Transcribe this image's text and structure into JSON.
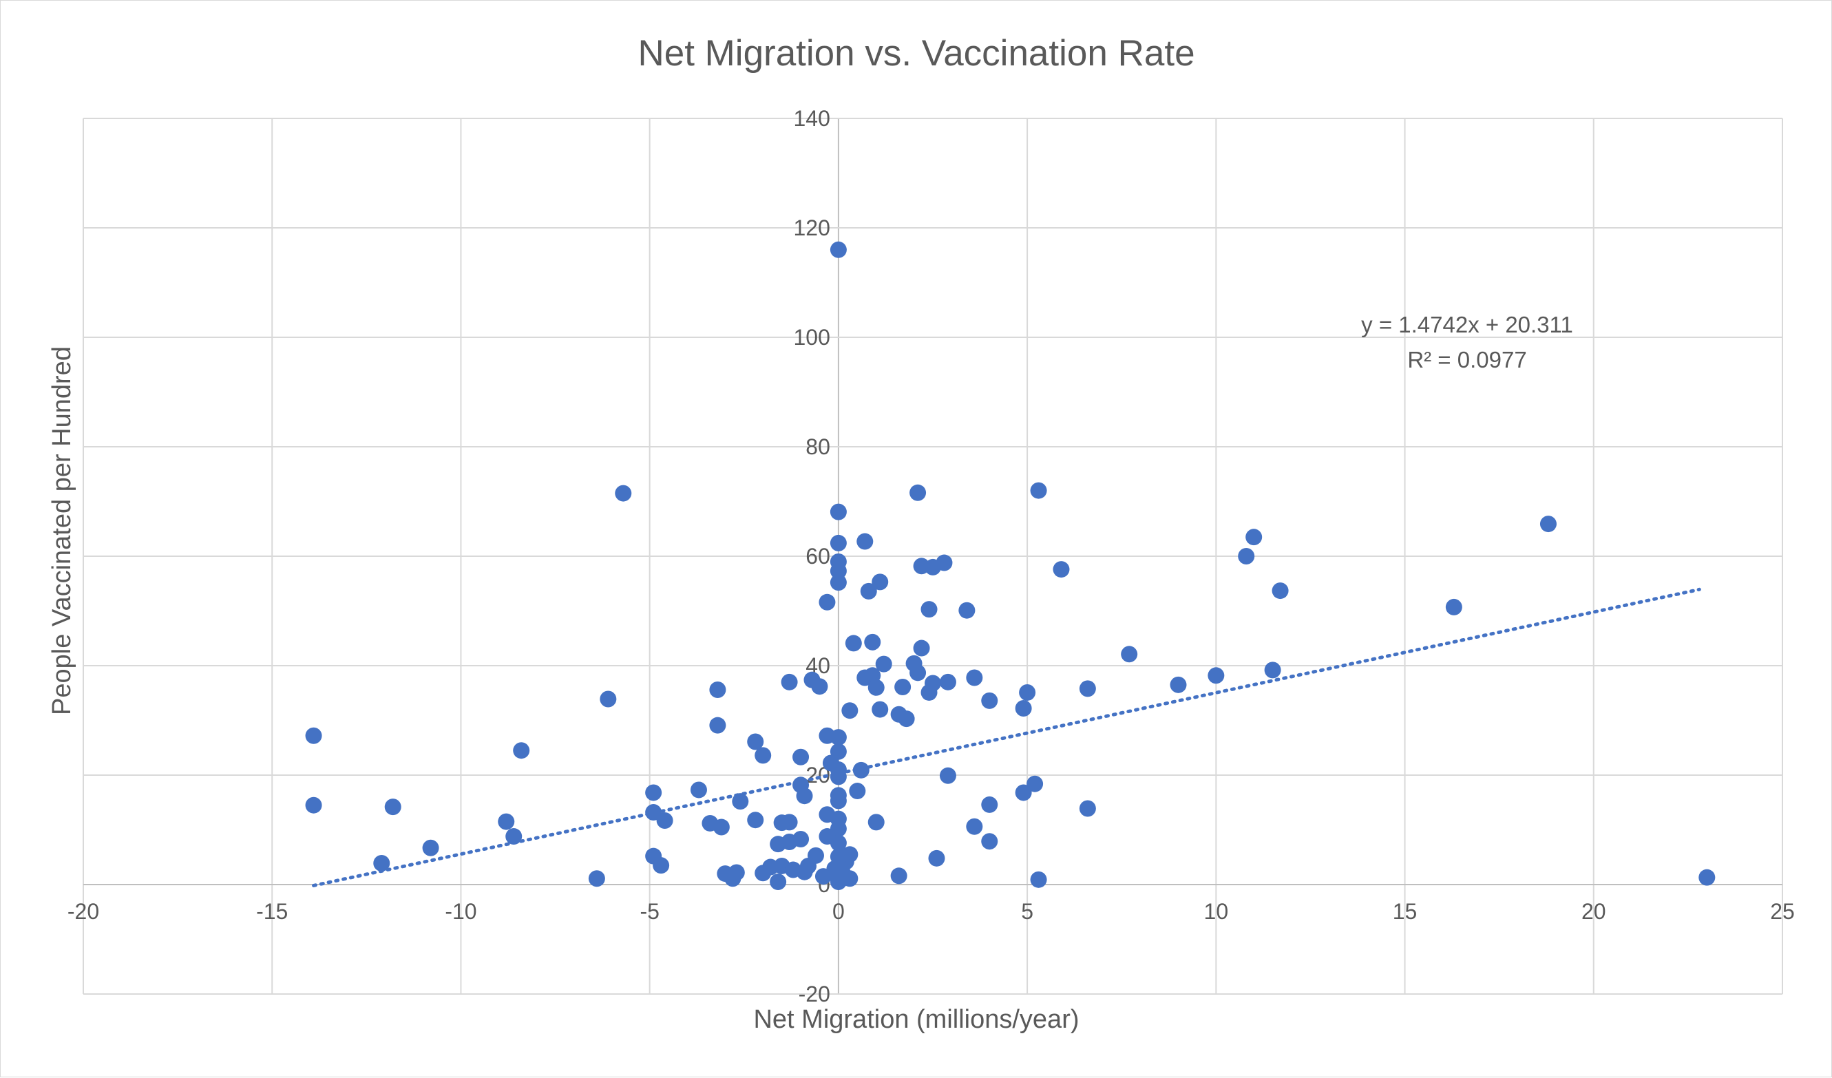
{
  "chart_data": {
    "type": "scatter",
    "title": "Net Migration vs. Vaccination Rate",
    "xlabel": "Net Migration (millions/year)",
    "ylabel": "People Vaccinated per Hundred",
    "xlim": [
      -20,
      25
    ],
    "ylim": [
      -20,
      140
    ],
    "x_ticks": [
      -20,
      -15,
      -10,
      -5,
      0,
      5,
      10,
      15,
      20,
      25
    ],
    "y_ticks": [
      -20,
      0,
      20,
      40,
      60,
      80,
      100,
      120,
      140
    ],
    "grid": true,
    "legend": "none",
    "marker_color": "#4472c4",
    "trendline": {
      "type": "linear",
      "style": "dotted",
      "slope": 1.4742,
      "intercept": 20.311,
      "x_range": [
        -13.9,
        22.8
      ],
      "equation_label": "y = 1.4742x + 20.311",
      "r2_label": "R² = 0.0977"
    },
    "points": [
      [
        -13.9,
        27.2
      ],
      [
        -13.9,
        14.5
      ],
      [
        -12.1,
        3.9
      ],
      [
        -11.8,
        14.2
      ],
      [
        -10.8,
        6.7
      ],
      [
        -8.8,
        11.5
      ],
      [
        -8.6,
        8.8
      ],
      [
        -8.4,
        24.5
      ],
      [
        -6.4,
        1.1
      ],
      [
        -6.1,
        33.9
      ],
      [
        -5.7,
        71.5
      ],
      [
        -4.9,
        5.2
      ],
      [
        -4.9,
        16.8
      ],
      [
        -4.9,
        13.2
      ],
      [
        -4.7,
        3.5
      ],
      [
        -4.6,
        11.7
      ],
      [
        -3.7,
        17.3
      ],
      [
        -3.4,
        11.2
      ],
      [
        -3.2,
        29.1
      ],
      [
        -3.2,
        35.6
      ],
      [
        -3.1,
        10.5
      ],
      [
        -3.0,
        2.0
      ],
      [
        -2.8,
        1.1
      ],
      [
        -2.7,
        2.2
      ],
      [
        -2.6,
        15.2
      ],
      [
        -2.2,
        26.1
      ],
      [
        -2.2,
        11.8
      ],
      [
        -2.0,
        23.6
      ],
      [
        -2.0,
        2.1
      ],
      [
        -1.8,
        3.2
      ],
      [
        -1.6,
        7.4
      ],
      [
        -1.6,
        0.5
      ],
      [
        -1.5,
        3.4
      ],
      [
        -1.5,
        11.3
      ],
      [
        -1.3,
        37.0
      ],
      [
        -1.3,
        11.4
      ],
      [
        -1.3,
        7.8
      ],
      [
        -1.2,
        2.7
      ],
      [
        -1.0,
        23.3
      ],
      [
        -1.0,
        18.2
      ],
      [
        -1.0,
        8.3
      ],
      [
        -0.9,
        16.2
      ],
      [
        -0.9,
        2.3
      ],
      [
        -0.8,
        3.4
      ],
      [
        -0.7,
        37.4
      ],
      [
        -0.6,
        5.3
      ],
      [
        -0.5,
        36.2
      ],
      [
        -0.4,
        1.5
      ],
      [
        -0.3,
        51.6
      ],
      [
        -0.3,
        27.2
      ],
      [
        -0.3,
        12.8
      ],
      [
        -0.3,
        8.8
      ],
      [
        -0.2,
        22.2
      ],
      [
        -0.1,
        2.9
      ],
      [
        0.0,
        116.0
      ],
      [
        0.0,
        68.1
      ],
      [
        0.0,
        62.4
      ],
      [
        0.0,
        59.0
      ],
      [
        0.0,
        57.3
      ],
      [
        0.0,
        55.2
      ],
      [
        0.0,
        26.9
      ],
      [
        0.0,
        24.3
      ],
      [
        0.0,
        21.0
      ],
      [
        0.0,
        19.7
      ],
      [
        0.0,
        16.3
      ],
      [
        0.0,
        15.3
      ],
      [
        0.0,
        12.0
      ],
      [
        0.0,
        10.2
      ],
      [
        0.0,
        7.6
      ],
      [
        0.0,
        5.1
      ],
      [
        0.0,
        3.2
      ],
      [
        0.0,
        1.6
      ],
      [
        0.0,
        0.5
      ],
      [
        0.1,
        1.1
      ],
      [
        0.1,
        2.3
      ],
      [
        0.2,
        4.2
      ],
      [
        0.3,
        31.8
      ],
      [
        0.3,
        5.5
      ],
      [
        0.3,
        1.1
      ],
      [
        0.4,
        44.1
      ],
      [
        0.5,
        17.1
      ],
      [
        0.6,
        20.9
      ],
      [
        0.7,
        62.7
      ],
      [
        0.7,
        37.8
      ],
      [
        0.8,
        53.6
      ],
      [
        0.9,
        44.3
      ],
      [
        0.9,
        38.2
      ],
      [
        1.0,
        36.0
      ],
      [
        1.0,
        11.4
      ],
      [
        1.1,
        55.3
      ],
      [
        1.1,
        32.0
      ],
      [
        1.2,
        40.3
      ],
      [
        1.6,
        1.6
      ],
      [
        1.6,
        31.1
      ],
      [
        1.7,
        36.1
      ],
      [
        1.8,
        30.3
      ],
      [
        2.0,
        40.4
      ],
      [
        2.1,
        71.6
      ],
      [
        2.1,
        38.7
      ],
      [
        2.2,
        58.2
      ],
      [
        2.2,
        43.2
      ],
      [
        2.4,
        35.1
      ],
      [
        2.4,
        50.3
      ],
      [
        2.5,
        36.8
      ],
      [
        2.5,
        58.0
      ],
      [
        2.6,
        4.8
      ],
      [
        2.8,
        58.8
      ],
      [
        2.9,
        37.0
      ],
      [
        2.9,
        19.9
      ],
      [
        3.4,
        50.1
      ],
      [
        3.6,
        37.8
      ],
      [
        3.6,
        10.6
      ],
      [
        4.0,
        14.6
      ],
      [
        4.0,
        33.6
      ],
      [
        4.0,
        7.9
      ],
      [
        4.9,
        32.2
      ],
      [
        4.9,
        16.8
      ],
      [
        5.0,
        35.1
      ],
      [
        5.2,
        18.4
      ],
      [
        5.3,
        0.9
      ],
      [
        5.3,
        72.0
      ],
      [
        5.9,
        57.6
      ],
      [
        6.6,
        13.9
      ],
      [
        6.6,
        35.8
      ],
      [
        7.7,
        42.1
      ],
      [
        9.0,
        36.5
      ],
      [
        10.0,
        38.2
      ],
      [
        10.8,
        60.0
      ],
      [
        11.0,
        63.5
      ],
      [
        11.5,
        39.2
      ],
      [
        11.7,
        53.7
      ],
      [
        16.3,
        50.7
      ],
      [
        18.8,
        65.9
      ],
      [
        23.0,
        1.3
      ]
    ]
  }
}
